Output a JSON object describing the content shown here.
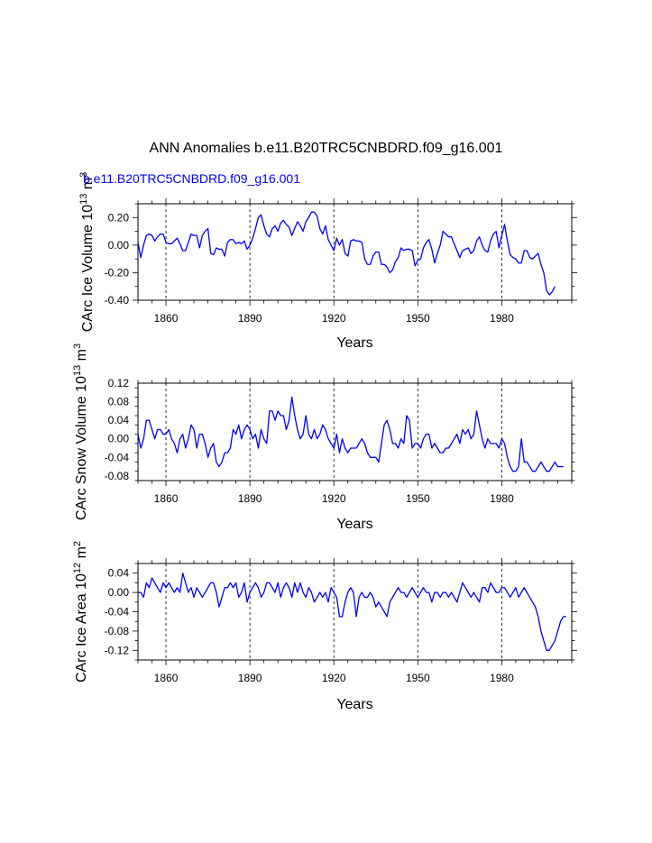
{
  "page": {
    "title": "ANN Anomalies b.e11.B20TRC5CNBDRD.f09_g16.001",
    "case_label": "b.e11.B20TRC5CNBDRD.f09_g16.001",
    "case_color": "#0000ff",
    "line_color": "#0000ff"
  },
  "chart_data": [
    {
      "type": "line",
      "name": "ice-volume",
      "title": "",
      "xlabel": "Years",
      "ylabel_main": "CArc Ice Volume 10",
      "ylabel_exp": "13",
      "ylabel_unit": " m",
      "ylabel_unit_exp": "3",
      "xlim": [
        1850,
        2005
      ],
      "ylim": [
        -0.4,
        0.3
      ],
      "xticks": [
        1860,
        1890,
        1920,
        1950,
        1980
      ],
      "xtick_labels": [
        "1860",
        "1890",
        "1920",
        "1950",
        "1980"
      ],
      "yticks": [
        -0.4,
        -0.2,
        0.0,
        0.2
      ],
      "ytick_labels": [
        "-0.40",
        "-0.20",
        "0.00",
        "0.20"
      ],
      "x_start": 1850,
      "values": [
        0.02,
        -0.09,
        0.0,
        0.07,
        0.08,
        0.07,
        0.03,
        0.06,
        0.08,
        0.08,
        0.02,
        0.01,
        0.01,
        0.03,
        0.05,
        0.01,
        -0.04,
        -0.04,
        0.02,
        0.08,
        0.07,
        0.07,
        -0.02,
        0.07,
        0.1,
        0.12,
        -0.06,
        -0.07,
        -0.02,
        -0.03,
        -0.03,
        -0.08,
        0.02,
        0.04,
        0.04,
        0.01,
        0.02,
        0.01,
        0.03,
        -0.03,
        0.0,
        0.05,
        0.12,
        0.2,
        0.22,
        0.14,
        0.08,
        0.06,
        0.12,
        0.14,
        0.1,
        0.16,
        0.18,
        0.15,
        0.13,
        0.07,
        0.12,
        0.17,
        0.14,
        0.1,
        0.17,
        0.2,
        0.24,
        0.24,
        0.21,
        0.12,
        0.08,
        0.14,
        0.04,
        0.0,
        -0.04,
        0.05,
        0.0,
        0.04,
        -0.06,
        -0.08,
        0.03,
        0.04,
        0.03,
        0.03,
        0.02,
        -0.1,
        -0.14,
        -0.14,
        -0.08,
        -0.05,
        -0.05,
        -0.14,
        -0.14,
        -0.16,
        -0.2,
        -0.18,
        -0.12,
        -0.09,
        -0.02,
        -0.04,
        -0.03,
        -0.03,
        -0.04,
        -0.15,
        -0.11,
        -0.1,
        -0.02,
        0.02,
        0.04,
        -0.03,
        -0.13,
        -0.06,
        0.0,
        0.1,
        0.08,
        0.06,
        0.06,
        0.01,
        -0.04,
        -0.09,
        -0.04,
        -0.03,
        -0.02,
        -0.06,
        -0.04,
        0.03,
        0.06,
        0.0,
        -0.04,
        -0.05,
        0.03,
        0.08,
        0.1,
        -0.02,
        0.07,
        0.15,
        0.03,
        -0.07,
        -0.09,
        -0.1,
        -0.13,
        -0.13,
        -0.04,
        -0.04,
        -0.09,
        -0.1,
        -0.08,
        -0.06,
        -0.14,
        -0.2,
        -0.33,
        -0.36,
        -0.34,
        -0.3
      ]
    },
    {
      "type": "line",
      "name": "snow-volume",
      "title": "",
      "xlabel": "Years",
      "ylabel_main": "CArc Snow Volume 10",
      "ylabel_exp": "13",
      "ylabel_unit": " m",
      "ylabel_unit_exp": "3",
      "xlim": [
        1850,
        2005
      ],
      "ylim": [
        -0.09,
        0.12
      ],
      "xticks": [
        1860,
        1890,
        1920,
        1950,
        1980
      ],
      "xtick_labels": [
        "1860",
        "1890",
        "1920",
        "1950",
        "1980"
      ],
      "yticks": [
        -0.08,
        -0.04,
        0.0,
        0.04,
        0.08,
        0.12
      ],
      "ytick_labels": [
        "-0.08",
        "-0.04",
        "0.00",
        "0.04",
        "0.08",
        "0.12"
      ],
      "x_start": 1850,
      "values": [
        0.01,
        -0.02,
        0.0,
        0.04,
        0.04,
        0.02,
        0.0,
        0.02,
        0.02,
        0.01,
        0.01,
        0.02,
        0.0,
        -0.01,
        -0.03,
        0.0,
        0.01,
        -0.02,
        0.0,
        0.03,
        0.02,
        -0.02,
        0.01,
        0.01,
        -0.01,
        -0.04,
        -0.02,
        -0.01,
        -0.05,
        -0.06,
        -0.05,
        -0.03,
        -0.03,
        -0.02,
        0.02,
        0.01,
        0.03,
        0.0,
        0.02,
        0.03,
        0.02,
        0.0,
        0.01,
        -0.02,
        0.02,
        0.0,
        -0.01,
        0.06,
        0.06,
        0.04,
        0.06,
        0.05,
        0.05,
        0.02,
        0.04,
        0.09,
        0.05,
        0.02,
        0.0,
        0.01,
        0.05,
        0.01,
        0.0,
        0.02,
        0.0,
        0.01,
        0.03,
        0.02,
        0.0,
        -0.01,
        -0.02,
        0.01,
        -0.03,
        0.0,
        -0.02,
        -0.03,
        -0.02,
        -0.02,
        -0.02,
        -0.01,
        0.0,
        -0.01,
        -0.03,
        -0.04,
        -0.04,
        -0.04,
        -0.05,
        -0.01,
        0.03,
        0.04,
        0.02,
        -0.01,
        -0.01,
        -0.02,
        0.0,
        -0.01,
        0.05,
        0.04,
        -0.02,
        -0.01,
        -0.01,
        -0.02,
        0.0,
        0.01,
        0.01,
        -0.02,
        -0.01,
        -0.02,
        -0.03,
        -0.03,
        -0.02,
        -0.02,
        -0.01,
        0.0,
        0.01,
        -0.01,
        0.02,
        0.01,
        0.02,
        0.0,
        0.01,
        0.06,
        0.03,
        0.0,
        -0.02,
        0.0,
        -0.01,
        -0.01,
        -0.01,
        -0.02,
        0.0,
        -0.01,
        -0.04,
        -0.06,
        -0.07,
        -0.07,
        -0.06,
        0.0,
        -0.05,
        -0.05,
        -0.06,
        -0.07,
        -0.07,
        -0.06,
        -0.05,
        -0.06,
        -0.07,
        -0.07,
        -0.06,
        -0.05,
        -0.06,
        -0.06,
        -0.06
      ]
    },
    {
      "type": "line",
      "name": "ice-area",
      "title": "",
      "xlabel": "Years",
      "ylabel_main": "CArc Ice Area 10",
      "ylabel_exp": "12",
      "ylabel_unit": " m",
      "ylabel_unit_exp": "2",
      "xlim": [
        1850,
        2005
      ],
      "ylim": [
        -0.14,
        0.06
      ],
      "xticks": [
        1860,
        1890,
        1920,
        1950,
        1980
      ],
      "xtick_labels": [
        "1860",
        "1890",
        "1920",
        "1950",
        "1980"
      ],
      "yticks": [
        -0.12,
        -0.08,
        -0.04,
        0.0,
        0.04
      ],
      "ytick_labels": [
        "-0.12",
        "-0.08",
        "-0.04",
        "0.00",
        "0.04"
      ],
      "x_start": 1850,
      "values": [
        0.0,
        0.0,
        -0.01,
        0.02,
        0.01,
        0.03,
        0.02,
        0.01,
        0.0,
        0.02,
        0.01,
        0.02,
        0.01,
        0.0,
        0.01,
        0.0,
        0.04,
        0.02,
        0.0,
        0.01,
        -0.01,
        0.01,
        0.0,
        -0.01,
        0.0,
        0.01,
        0.02,
        0.02,
        0.0,
        -0.03,
        -0.01,
        0.01,
        0.01,
        0.02,
        0.01,
        0.02,
        -0.01,
        0.0,
        0.02,
        -0.02,
        0.0,
        0.01,
        0.02,
        0.01,
        -0.01,
        0.0,
        0.02,
        0.02,
        0.01,
        0.0,
        0.02,
        -0.01,
        0.01,
        0.02,
        0.01,
        -0.01,
        0.02,
        0.0,
        0.02,
        0.0,
        -0.01,
        0.01,
        0.0,
        -0.02,
        -0.01,
        0.0,
        -0.01,
        0.0,
        -0.02,
        0.01,
        0.0,
        -0.01,
        -0.05,
        -0.05,
        -0.02,
        0.0,
        0.01,
        0.0,
        -0.05,
        -0.01,
        0.0,
        -0.01,
        -0.01,
        0.0,
        -0.01,
        -0.03,
        -0.02,
        -0.03,
        -0.04,
        -0.05,
        -0.02,
        -0.01,
        0.0,
        0.01,
        0.0,
        0.0,
        -0.01,
        0.0,
        0.01,
        0.0,
        -0.01,
        0.0,
        0.01,
        0.0,
        0.0,
        -0.02,
        0.0,
        0.0,
        -0.01,
        0.0,
        0.0,
        -0.01,
        0.0,
        -0.01,
        -0.02,
        0.0,
        0.02,
        0.01,
        0.0,
        -0.01,
        0.0,
        -0.01,
        -0.02,
        0.01,
        0.01,
        0.0,
        0.02,
        0.01,
        0.0,
        0.0,
        0.01,
        0.01,
        0.0,
        -0.01,
        0.0,
        0.01,
        -0.01,
        0.0,
        0.01,
        0.0,
        -0.01,
        -0.02,
        -0.03,
        -0.05,
        -0.08,
        -0.1,
        -0.12,
        -0.12,
        -0.11,
        -0.1,
        -0.08,
        -0.06,
        -0.05,
        -0.05
      ]
    }
  ]
}
